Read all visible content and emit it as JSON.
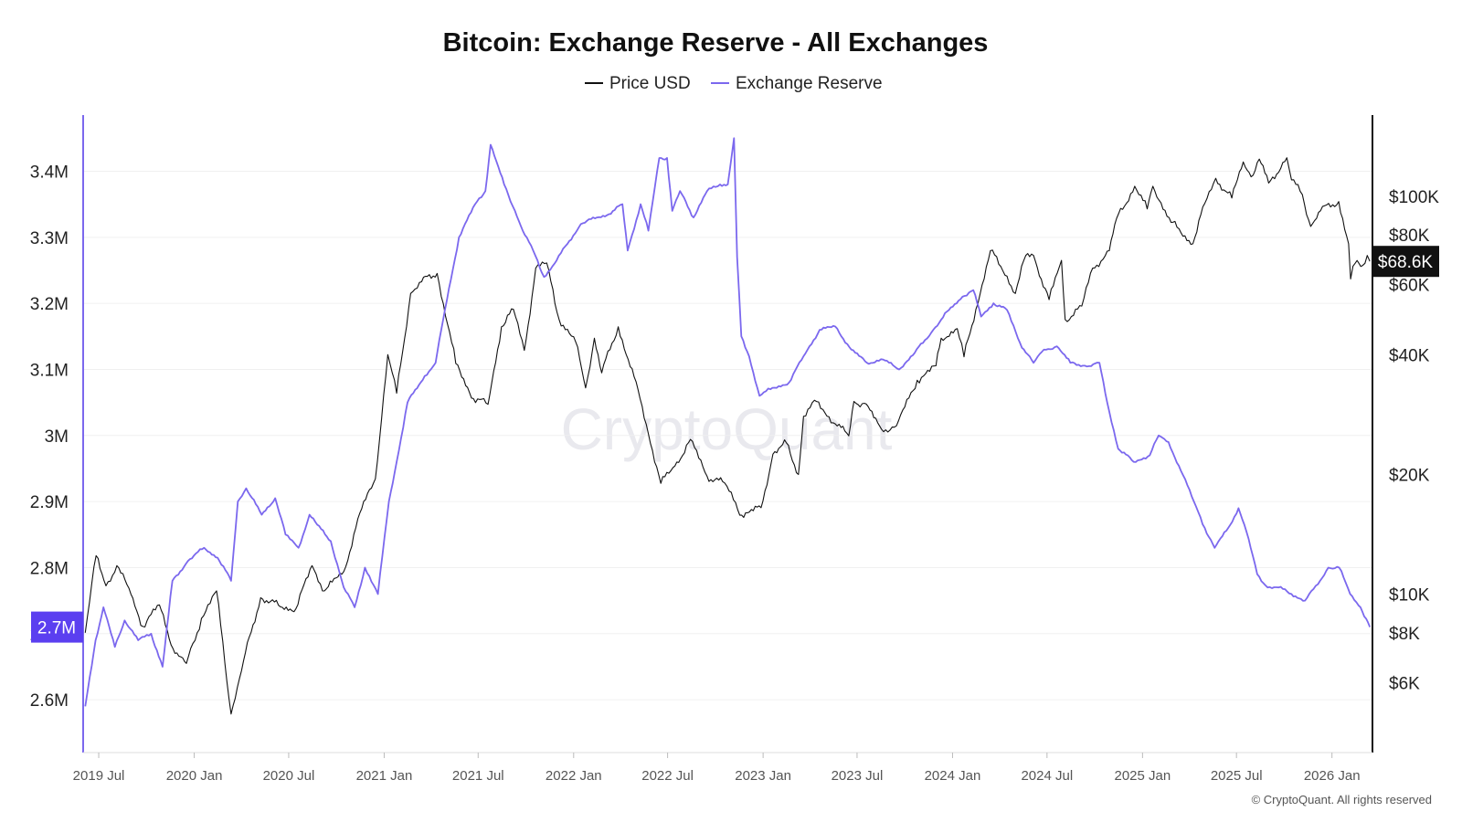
{
  "chart_data": {
    "type": "line",
    "title": "Bitcoin: Exchange Reserve - All Exchanges",
    "watermark": "CryptoQuant",
    "copyright": "© CryptoQuant. All rights reserved",
    "legend_position": "top-center",
    "grid": true,
    "x_ticks": [
      "2019 Jul",
      "2020 Jan",
      "2020 Jul",
      "2021 Jan",
      "2021 Jul",
      "2022 Jan",
      "2022 Jul",
      "2023 Jan",
      "2023 Jul",
      "2024 Jan",
      "2024 Jul",
      "2025 Jan",
      "2025 Jul",
      "2026 Jan"
    ],
    "x_tick_dates": [
      "2019-07-01",
      "2020-01-01",
      "2020-07-01",
      "2021-01-01",
      "2021-07-01",
      "2022-01-01",
      "2022-07-01",
      "2023-01-01",
      "2023-07-01",
      "2024-01-01",
      "2024-07-01",
      "2025-01-01",
      "2025-07-01",
      "2026-01-01"
    ],
    "xlim": [
      "2019-06-01",
      "2026-03-20"
    ],
    "left_axis": {
      "scale": "linear",
      "range": [
        2520000,
        3485000
      ],
      "ticks": [
        2600000,
        2700000,
        2800000,
        2900000,
        3000000,
        3100000,
        3200000,
        3300000,
        3400000
      ],
      "tick_labels": [
        "2.6M",
        "2.7M",
        "2.8M",
        "2.9M",
        "3M",
        "3.1M",
        "3.2M",
        "3.3M",
        "3.4M"
      ],
      "current_value_label": "2.7M",
      "color": "#7b68ee"
    },
    "right_axis": {
      "scale": "log",
      "range": [
        4000,
        160000
      ],
      "ticks": [
        6000,
        8000,
        10000,
        20000,
        40000,
        60000,
        80000,
        100000
      ],
      "tick_labels": [
        "$6K",
        "$8K",
        "$10K",
        "$20K",
        "$40K",
        "$60K",
        "$80K",
        "$100K"
      ],
      "current_value_label": "$68.6K",
      "color": "#111111"
    },
    "series": [
      {
        "name": "Price USD",
        "axis": "right",
        "color": "#111111",
        "points": [
          [
            "2019-06-05",
            8000
          ],
          [
            "2019-06-26",
            12500
          ],
          [
            "2019-07-15",
            10500
          ],
          [
            "2019-08-05",
            11800
          ],
          [
            "2019-09-01",
            10000
          ],
          [
            "2019-09-24",
            8300
          ],
          [
            "2019-10-26",
            9400
          ],
          [
            "2019-11-25",
            7100
          ],
          [
            "2019-12-17",
            6700
          ],
          [
            "2020-01-15",
            8700
          ],
          [
            "2020-02-13",
            10200
          ],
          [
            "2020-03-12",
            5000
          ],
          [
            "2020-04-05",
            6800
          ],
          [
            "2020-05-08",
            9800
          ],
          [
            "2020-06-15",
            9300
          ],
          [
            "2020-07-15",
            9200
          ],
          [
            "2020-08-15",
            11800
          ],
          [
            "2020-09-08",
            10200
          ],
          [
            "2020-10-15",
            11400
          ],
          [
            "2020-11-15",
            16000
          ],
          [
            "2020-12-15",
            19500
          ],
          [
            "2021-01-08",
            40000
          ],
          [
            "2021-01-25",
            32000
          ],
          [
            "2021-02-21",
            57000
          ],
          [
            "2021-03-14",
            61000
          ],
          [
            "2021-04-13",
            64000
          ],
          [
            "2021-05-19",
            38000
          ],
          [
            "2021-06-22",
            31000
          ],
          [
            "2021-07-20",
            30000
          ],
          [
            "2021-08-15",
            47000
          ],
          [
            "2021-09-07",
            52000
          ],
          [
            "2021-09-28",
            41000
          ],
          [
            "2021-10-20",
            66000
          ],
          [
            "2021-11-10",
            68000
          ],
          [
            "2021-12-04",
            49000
          ],
          [
            "2022-01-05",
            43000
          ],
          [
            "2022-01-24",
            33000
          ],
          [
            "2022-02-10",
            44000
          ],
          [
            "2022-02-24",
            36000
          ],
          [
            "2022-03-28",
            47000
          ],
          [
            "2022-05-09",
            31000
          ],
          [
            "2022-06-18",
            19000
          ],
          [
            "2022-07-15",
            21000
          ],
          [
            "2022-08-14",
            24500
          ],
          [
            "2022-09-15",
            19800
          ],
          [
            "2022-10-15",
            19200
          ],
          [
            "2022-11-09",
            17000
          ],
          [
            "2022-11-21",
            15800
          ],
          [
            "2022-12-28",
            16500
          ],
          [
            "2023-01-20",
            22500
          ],
          [
            "2023-02-15",
            24000
          ],
          [
            "2023-03-10",
            20000
          ],
          [
            "2023-03-20",
            28000
          ],
          [
            "2023-04-14",
            30500
          ],
          [
            "2023-05-20",
            26800
          ],
          [
            "2023-06-15",
            25000
          ],
          [
            "2023-06-25",
            30500
          ],
          [
            "2023-07-15",
            30200
          ],
          [
            "2023-08-17",
            26000
          ],
          [
            "2023-09-15",
            26500
          ],
          [
            "2023-10-25",
            34500
          ],
          [
            "2023-11-30",
            37500
          ],
          [
            "2023-12-10",
            44000
          ],
          [
            "2024-01-10",
            46500
          ],
          [
            "2024-01-23",
            39500
          ],
          [
            "2024-02-15",
            52000
          ],
          [
            "2024-03-14",
            73000
          ],
          [
            "2024-04-15",
            63000
          ],
          [
            "2024-05-01",
            57000
          ],
          [
            "2024-05-21",
            71000
          ],
          [
            "2024-06-05",
            71000
          ],
          [
            "2024-07-05",
            55000
          ],
          [
            "2024-07-29",
            69000
          ],
          [
            "2024-08-05",
            49000
          ],
          [
            "2024-09-06",
            53000
          ],
          [
            "2024-09-27",
            66000
          ],
          [
            "2024-10-29",
            73000
          ],
          [
            "2024-11-12",
            88000
          ],
          [
            "2024-12-17",
            106000
          ],
          [
            "2025-01-10",
            93000
          ],
          [
            "2025-01-21",
            106000
          ],
          [
            "2025-02-25",
            86000
          ],
          [
            "2025-04-08",
            76000
          ],
          [
            "2025-05-01",
            96000
          ],
          [
            "2025-05-22",
            111000
          ],
          [
            "2025-06-22",
            99000
          ],
          [
            "2025-07-14",
            122000
          ],
          [
            "2025-08-02",
            113000
          ],
          [
            "2025-08-14",
            124000
          ],
          [
            "2025-09-01",
            108000
          ],
          [
            "2025-10-06",
            125000
          ],
          [
            "2025-10-15",
            110000
          ],
          [
            "2025-11-05",
            101000
          ],
          [
            "2025-11-21",
            84000
          ],
          [
            "2025-12-10",
            92000
          ],
          [
            "2026-01-14",
            97000
          ],
          [
            "2026-02-02",
            76000
          ],
          [
            "2026-02-06",
            62000
          ],
          [
            "2026-02-15",
            68000
          ],
          [
            "2026-03-01",
            67000
          ],
          [
            "2026-03-10",
            71000
          ],
          [
            "2026-03-15",
            68600
          ]
        ]
      },
      {
        "name": "Exchange Reserve",
        "axis": "left",
        "color": "#7b68ee",
        "points": [
          [
            "2019-06-05",
            2590000
          ],
          [
            "2019-06-10",
            2615000
          ],
          [
            "2019-06-25",
            2690000
          ],
          [
            "2019-07-10",
            2740000
          ],
          [
            "2019-08-01",
            2680000
          ],
          [
            "2019-08-20",
            2720000
          ],
          [
            "2019-09-15",
            2690000
          ],
          [
            "2019-10-10",
            2700000
          ],
          [
            "2019-11-01",
            2650000
          ],
          [
            "2019-11-20",
            2780000
          ],
          [
            "2019-12-20",
            2810000
          ],
          [
            "2020-01-20",
            2830000
          ],
          [
            "2020-02-15",
            2815000
          ],
          [
            "2020-03-12",
            2780000
          ],
          [
            "2020-03-25",
            2900000
          ],
          [
            "2020-04-10",
            2920000
          ],
          [
            "2020-05-10",
            2880000
          ],
          [
            "2020-06-05",
            2905000
          ],
          [
            "2020-06-25",
            2850000
          ],
          [
            "2020-07-20",
            2830000
          ],
          [
            "2020-08-10",
            2880000
          ],
          [
            "2020-08-25",
            2865000
          ],
          [
            "2020-09-20",
            2840000
          ],
          [
            "2020-10-15",
            2770000
          ],
          [
            "2020-11-05",
            2740000
          ],
          [
            "2020-11-25",
            2800000
          ],
          [
            "2020-12-20",
            2760000
          ],
          [
            "2021-01-10",
            2900000
          ],
          [
            "2021-01-25",
            2960000
          ],
          [
            "2021-02-15",
            3050000
          ],
          [
            "2021-03-20",
            3090000
          ],
          [
            "2021-04-10",
            3110000
          ],
          [
            "2021-04-28",
            3190000
          ],
          [
            "2021-05-25",
            3300000
          ],
          [
            "2021-06-25",
            3350000
          ],
          [
            "2021-07-15",
            3370000
          ],
          [
            "2021-07-25",
            3440000
          ],
          [
            "2021-08-20",
            3380000
          ],
          [
            "2021-09-10",
            3340000
          ],
          [
            "2021-09-25",
            3310000
          ],
          [
            "2021-10-15",
            3280000
          ],
          [
            "2021-11-05",
            3240000
          ],
          [
            "2021-11-25",
            3260000
          ],
          [
            "2021-12-20",
            3290000
          ],
          [
            "2022-01-15",
            3320000
          ],
          [
            "2022-02-15",
            3330000
          ],
          [
            "2022-03-10",
            3335000
          ],
          [
            "2022-04-05",
            3350000
          ],
          [
            "2022-04-15",
            3280000
          ],
          [
            "2022-05-10",
            3350000
          ],
          [
            "2022-05-25",
            3310000
          ],
          [
            "2022-06-15",
            3420000
          ],
          [
            "2022-06-30",
            3420000
          ],
          [
            "2022-07-10",
            3340000
          ],
          [
            "2022-07-25",
            3370000
          ],
          [
            "2022-08-20",
            3330000
          ],
          [
            "2022-09-15",
            3370000
          ],
          [
            "2022-10-10",
            3380000
          ],
          [
            "2022-10-25",
            3380000
          ],
          [
            "2022-11-06",
            3450000
          ],
          [
            "2022-11-12",
            3270000
          ],
          [
            "2022-11-20",
            3150000
          ],
          [
            "2022-12-05",
            3120000
          ],
          [
            "2022-12-25",
            3060000
          ],
          [
            "2023-01-15",
            3070000
          ],
          [
            "2023-02-20",
            3080000
          ],
          [
            "2023-03-20",
            3120000
          ],
          [
            "2023-04-20",
            3160000
          ],
          [
            "2023-05-20",
            3165000
          ],
          [
            "2023-06-20",
            3130000
          ],
          [
            "2023-07-20",
            3110000
          ],
          [
            "2023-08-20",
            3115000
          ],
          [
            "2023-09-20",
            3100000
          ],
          [
            "2023-10-20",
            3125000
          ],
          [
            "2023-11-25",
            3160000
          ],
          [
            "2023-12-25",
            3190000
          ],
          [
            "2024-01-20",
            3210000
          ],
          [
            "2024-02-10",
            3220000
          ],
          [
            "2024-02-25",
            3180000
          ],
          [
            "2024-03-20",
            3200000
          ],
          [
            "2024-04-15",
            3190000
          ],
          [
            "2024-05-10",
            3140000
          ],
          [
            "2024-06-05",
            3110000
          ],
          [
            "2024-06-25",
            3130000
          ],
          [
            "2024-07-20",
            3135000
          ],
          [
            "2024-08-15",
            3110000
          ],
          [
            "2024-09-20",
            3105000
          ],
          [
            "2024-10-10",
            3110000
          ],
          [
            "2024-10-25",
            3050000
          ],
          [
            "2024-11-15",
            2980000
          ],
          [
            "2024-12-15",
            2960000
          ],
          [
            "2025-01-15",
            2970000
          ],
          [
            "2025-02-01",
            3000000
          ],
          [
            "2025-02-20",
            2990000
          ],
          [
            "2025-03-20",
            2940000
          ],
          [
            "2025-04-10",
            2900000
          ],
          [
            "2025-05-01",
            2860000
          ],
          [
            "2025-05-20",
            2830000
          ],
          [
            "2025-06-15",
            2860000
          ],
          [
            "2025-07-05",
            2890000
          ],
          [
            "2025-07-20",
            2855000
          ],
          [
            "2025-08-10",
            2790000
          ],
          [
            "2025-08-30",
            2770000
          ],
          [
            "2025-09-20",
            2770000
          ],
          [
            "2025-10-15",
            2760000
          ],
          [
            "2025-11-10",
            2750000
          ],
          [
            "2025-12-05",
            2775000
          ],
          [
            "2025-12-25",
            2800000
          ],
          [
            "2026-01-15",
            2800000
          ],
          [
            "2026-02-05",
            2760000
          ],
          [
            "2026-02-25",
            2740000
          ],
          [
            "2026-03-15",
            2710000
          ]
        ]
      }
    ]
  }
}
